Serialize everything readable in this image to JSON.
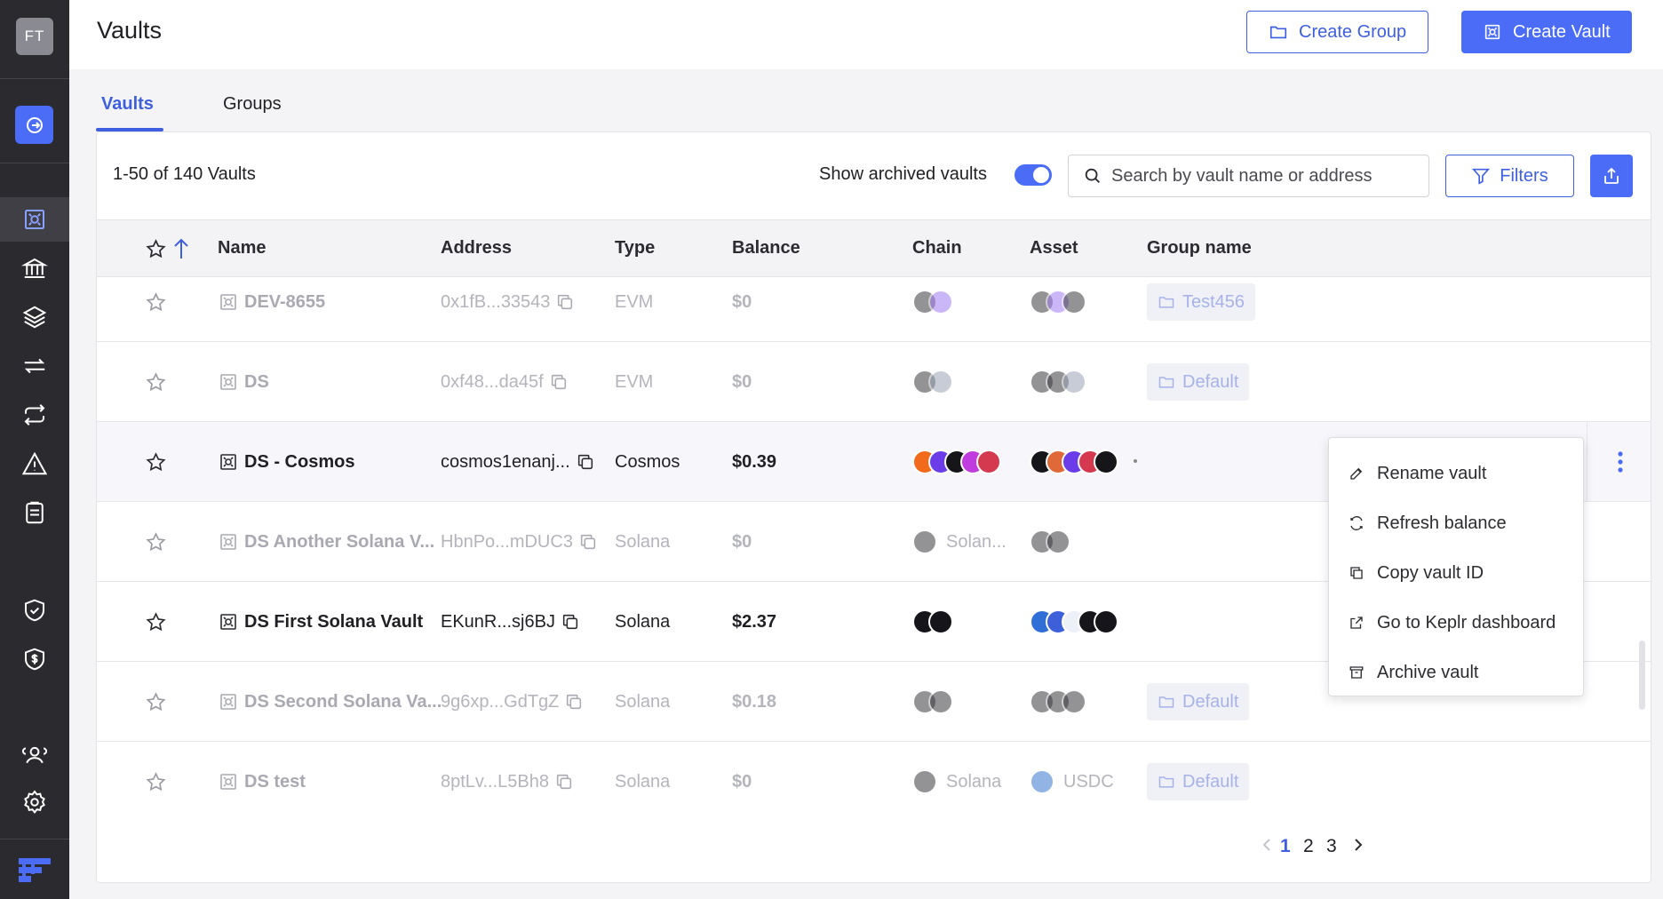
{
  "app": {
    "avatar_initials": "FT",
    "accent": "#4a6cf7"
  },
  "sidebar": {
    "icons": [
      "exit-icon",
      "vault-icon",
      "bank-icon",
      "layers-icon",
      "transfer-icon",
      "swap-icon",
      "alert-icon",
      "clipboard-icon",
      "shield-check-icon",
      "shield-dollar-icon",
      "users-icon",
      "settings-icon",
      "brand-logo-icon"
    ]
  },
  "header": {
    "title": "Vaults",
    "create_group": "Create Group",
    "create_vault": "Create Vault"
  },
  "tabs": [
    {
      "label": "Vaults",
      "active": true
    },
    {
      "label": "Groups",
      "active": false
    }
  ],
  "toolbar": {
    "count": "1-50 of 140 Vaults",
    "archived_label": "Show archived vaults",
    "archived_on": true,
    "search_placeholder": "Search by vault name or address",
    "filters": "Filters"
  },
  "table": {
    "columns": [
      "Name",
      "Address",
      "Type",
      "Balance",
      "Chain",
      "Asset",
      "Group name"
    ],
    "rows": [
      {
        "name": "DEV-8655",
        "address": "0x1fB...33543",
        "type": "EVM",
        "balance": "$0",
        "chain_label": "",
        "asset_label": "",
        "group": "Test456",
        "style": "dim"
      },
      {
        "name": "DS",
        "address": "0xf48...da45f",
        "type": "EVM",
        "balance": "$0",
        "chain_label": "",
        "asset_label": "",
        "group": "Default",
        "style": "dim"
      },
      {
        "name": "DS - Cosmos",
        "address": "cosmos1enanj...",
        "type": "Cosmos",
        "balance": "$0.39",
        "chain_label": "",
        "asset_label": "",
        "group": "",
        "style": "bold"
      },
      {
        "name": "DS Another Solana V...",
        "address": "HbnPo...mDUC3",
        "type": "Solana",
        "balance": "$0",
        "chain_label": "Solan...",
        "asset_label": "",
        "group": "",
        "style": "dim"
      },
      {
        "name": "DS First Solana Vault",
        "address": "EKunR...sj6BJ",
        "type": "Solana",
        "balance": "$2.37",
        "chain_label": "",
        "asset_label": "",
        "group": "",
        "style": "bold"
      },
      {
        "name": "DS Second Solana Va...",
        "address": "9g6xp...GdTgZ",
        "type": "Solana",
        "balance": "$0.18",
        "chain_label": "",
        "asset_label": "",
        "group": "Default",
        "style": "dim"
      },
      {
        "name": "DS test",
        "address": "8ptLv...L5Bh8",
        "type": "Solana",
        "balance": "$0",
        "chain_label": "Solana",
        "asset_label": "USDC",
        "group": "Default",
        "style": "dim"
      }
    ]
  },
  "context_menu": [
    {
      "label": "Rename vault",
      "icon": "edit-icon"
    },
    {
      "label": "Refresh balance",
      "icon": "refresh-icon"
    },
    {
      "label": "Copy vault ID",
      "icon": "copy-icon"
    },
    {
      "label": "Go to Keplr dashboard",
      "icon": "external-link-icon"
    },
    {
      "label": "Archive vault",
      "icon": "archive-icon"
    }
  ],
  "pagination": {
    "pages": [
      "1",
      "2",
      "3"
    ],
    "current": "1"
  }
}
